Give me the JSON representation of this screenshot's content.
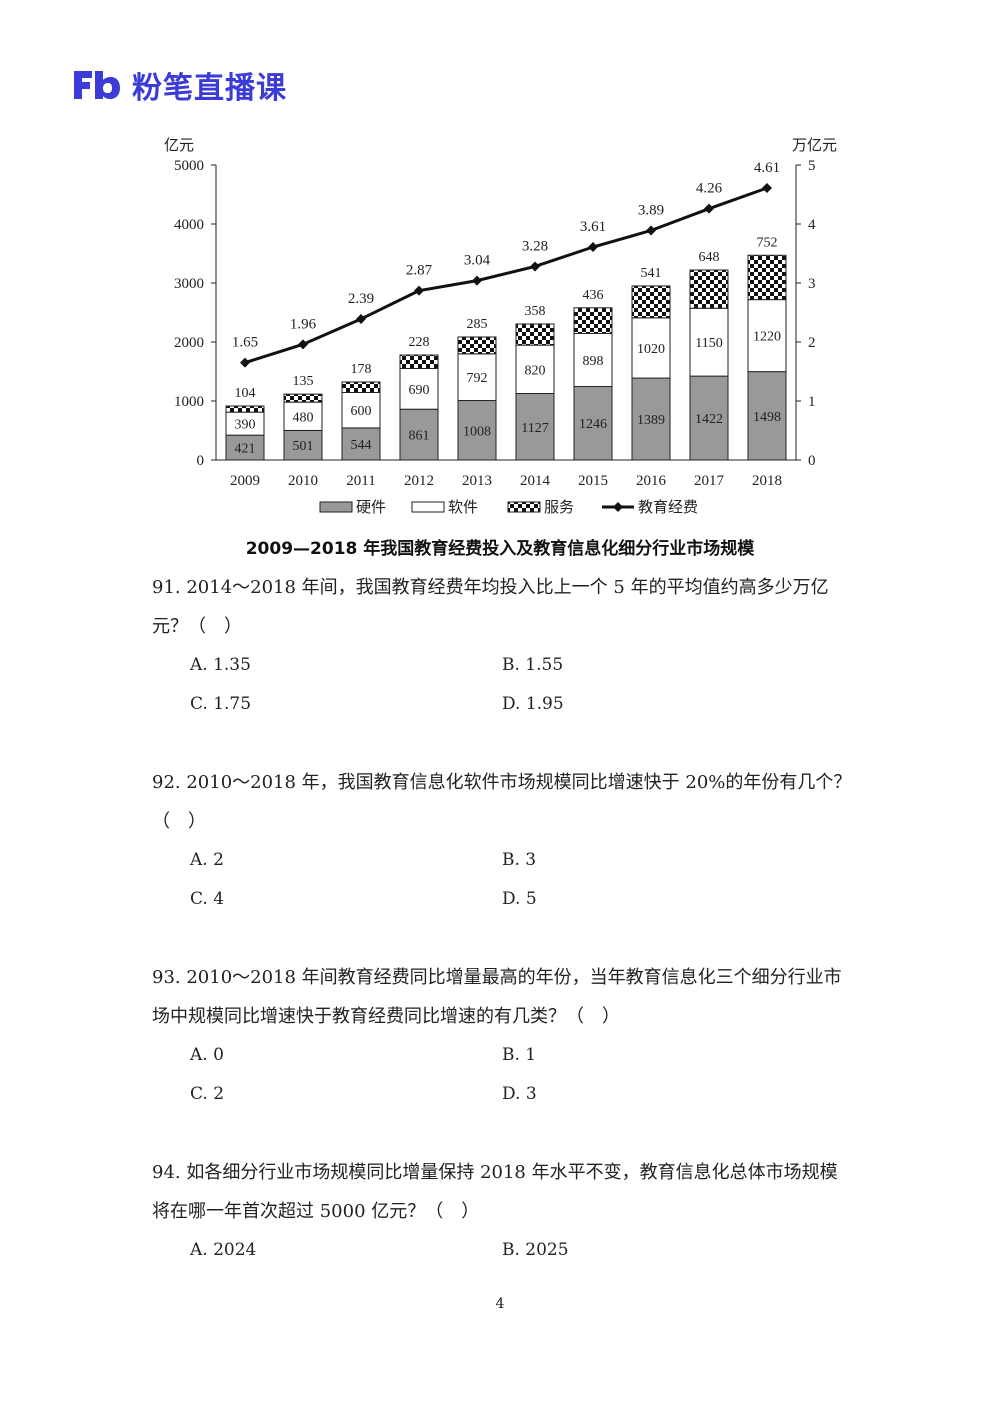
{
  "header": {
    "brand": "粉笔直播课"
  },
  "chart_data": {
    "type": "bar",
    "title": "2009—2018 年我国教育经费投入及教育信息化细分行业市场规模",
    "categories": [
      "2009",
      "2010",
      "2011",
      "2012",
      "2013",
      "2014",
      "2015",
      "2016",
      "2017",
      "2018"
    ],
    "y_left_label": "亿元",
    "y_right_label": "万亿元",
    "ylim_left": [
      0,
      5000
    ],
    "ylim_right": [
      0,
      5
    ],
    "y_left_ticks": [
      0,
      1000,
      2000,
      3000,
      4000,
      5000
    ],
    "y_right_ticks": [
      0,
      1,
      2,
      3,
      4,
      5
    ],
    "series": [
      {
        "name": "硬件",
        "kind": "bar",
        "axis": "left",
        "color": "#999999",
        "values": [
          421,
          501,
          544,
          861,
          1008,
          1127,
          1246,
          1389,
          1422,
          1498
        ]
      },
      {
        "name": "软件",
        "kind": "bar",
        "axis": "left",
        "color": "#ffffff",
        "values": [
          390,
          480,
          600,
          690,
          792,
          820,
          898,
          1020,
          1150,
          1220
        ]
      },
      {
        "name": "服务",
        "kind": "bar",
        "axis": "left",
        "color": "checker",
        "values": [
          104,
          135,
          178,
          228,
          285,
          358,
          436,
          541,
          648,
          752
        ]
      },
      {
        "name": "教育经费",
        "kind": "line",
        "axis": "right",
        "color": "#111111",
        "values": [
          1.65,
          1.96,
          2.39,
          2.87,
          3.04,
          3.28,
          3.61,
          3.89,
          4.26,
          4.61
        ]
      }
    ],
    "legend_position": "bottom",
    "grid": false
  },
  "questions": [
    {
      "stem": "91. 2014～2018 年间，我国教育经费年均投入比上一个 5 年的平均值约高多少万亿元？（　）",
      "options": [
        "A. 1.35",
        "B. 1.55",
        "C. 1.75",
        "D. 1.95"
      ]
    },
    {
      "stem": "92. 2010～2018 年，我国教育信息化软件市场规模同比增速快于 20%的年份有几个？（　）",
      "options": [
        "A. 2",
        "B. 3",
        "C. 4",
        "D. 5"
      ]
    },
    {
      "stem": "93. 2010～2018 年间教育经费同比增量最高的年份，当年教育信息化三个细分行业市场中规模同比增速快于教育经费同比增速的有几类？（　）",
      "options": [
        "A. 0",
        "B. 1",
        "C. 2",
        "D. 3"
      ]
    },
    {
      "stem": "94. 如各细分行业市场规模同比增量保持 2018 年水平不变，教育信息化总体市场规模将在哪一年首次超过 5000 亿元？（　）",
      "options": [
        "A. 2024",
        "B. 2025"
      ]
    }
  ],
  "footer": {
    "page": "4"
  }
}
